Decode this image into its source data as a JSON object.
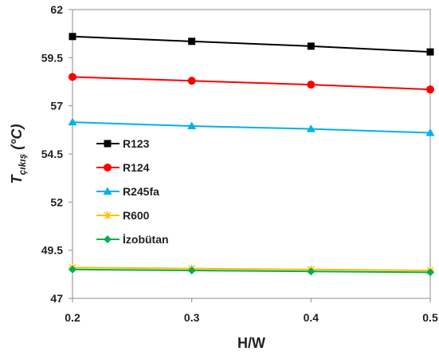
{
  "chart_data": {
    "type": "line",
    "xlabel": "H/W",
    "ylabel": {
      "main": "T",
      "sub": "çıkış",
      "unit": " (°C)"
    },
    "x": [
      0.2,
      0.3,
      0.4,
      0.5
    ],
    "x_ticks": [
      "0.2",
      "0.3",
      "0.4",
      "0.5"
    ],
    "y_ticks": [
      "47",
      "49.5",
      "52",
      "54.5",
      "57",
      "59.5",
      "62"
    ],
    "xlim": [
      0.2,
      0.5
    ],
    "ylim": [
      47,
      62
    ],
    "grid": false,
    "legend_position": "left-middle",
    "series": [
      {
        "name": "R123",
        "values": [
          60.6,
          60.35,
          60.1,
          59.8
        ],
        "color": "#000000",
        "marker": "square"
      },
      {
        "name": "R124",
        "values": [
          58.5,
          58.3,
          58.1,
          57.85
        ],
        "color": "#ff0000",
        "marker": "circle"
      },
      {
        "name": "R245fa",
        "values": [
          56.15,
          55.95,
          55.8,
          55.6
        ],
        "color": "#00b0f0",
        "marker": "triangle"
      },
      {
        "name": "R600",
        "values": [
          48.6,
          48.55,
          48.5,
          48.45
        ],
        "color": "#ffc000",
        "marker": "star"
      },
      {
        "name": "İzobütan",
        "values": [
          48.5,
          48.45,
          48.4,
          48.35
        ],
        "color": "#00b050",
        "marker": "diamond"
      }
    ]
  }
}
